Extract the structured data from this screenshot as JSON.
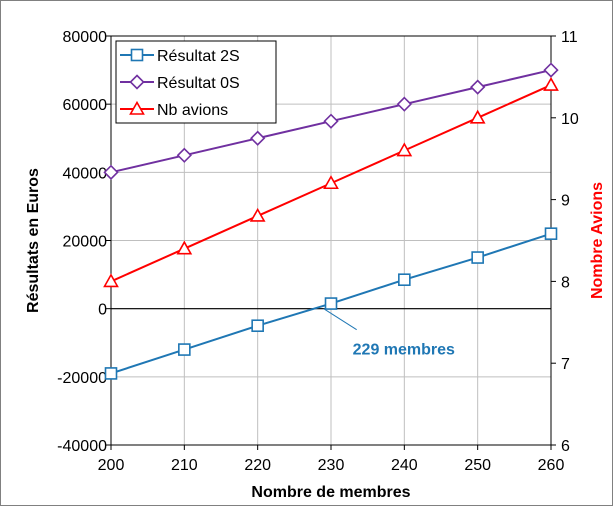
{
  "chart_data": {
    "type": "line",
    "title": "",
    "xlabel": "Nombre de membres",
    "ylabel": "Résultats en Euros",
    "y2label": "Nombre Avions",
    "x": [
      200,
      210,
      220,
      230,
      240,
      250,
      260
    ],
    "xlim": [
      200,
      260
    ],
    "ylim": [
      -40000,
      80000
    ],
    "y2lim": [
      6,
      11
    ],
    "xticks": [
      "200",
      "210",
      "220",
      "230",
      "240",
      "250",
      "260"
    ],
    "yticks": [
      "-40000",
      "-20000",
      "0",
      "20000",
      "40000",
      "60000",
      "80000"
    ],
    "y2ticks": [
      "6",
      "7",
      "8",
      "9",
      "10",
      "11"
    ],
    "grid": true,
    "legend": "top-left",
    "series": [
      {
        "name": "Résultat 2S",
        "axis": "left",
        "color": "#1f77b4",
        "marker": "square",
        "values": [
          -19000,
          -12000,
          -5000,
          1500,
          8500,
          15000,
          22000
        ]
      },
      {
        "name": "Résultat 0S",
        "axis": "left",
        "color": "#7030a0",
        "marker": "diamond",
        "values": [
          40000,
          45000,
          50000,
          55000,
          60000,
          65000,
          70000
        ]
      },
      {
        "name": "Nb avions",
        "axis": "right",
        "color": "#ff0000",
        "marker": "triangle",
        "values": [
          8.0,
          8.4,
          8.8,
          9.2,
          9.6,
          10.0,
          10.4
        ]
      }
    ],
    "annotations": [
      {
        "text": "229 membres",
        "x": 229,
        "y": 0,
        "color": "#1f77b4"
      }
    ]
  }
}
